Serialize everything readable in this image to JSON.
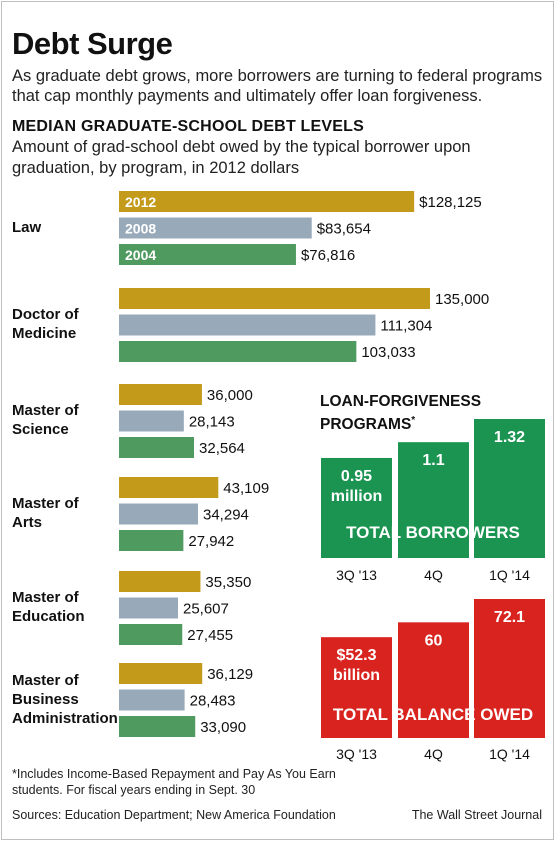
{
  "header": {
    "title": "Debt Surge",
    "subtitle": "As graduate debt grows, more borrowers are turning to federal programs that cap monthly payments and ultimately offer loan forgiveness."
  },
  "chart_data": [
    {
      "type": "bar",
      "orientation": "horizontal",
      "title": "MEDIAN GRADUATE-SCHOOL DEBT LEVELS",
      "subtitle": "Amount of grad-school debt owed by the typical borrower upon graduation, by program, in 2012 dollars",
      "categories": [
        "Law",
        "Doctor of Medicine",
        "Master of Science",
        "Master of Arts",
        "Master of Education",
        "Master of Business Administration"
      ],
      "category_lines": [
        [
          "Law"
        ],
        [
          "Doctor of",
          "Medicine"
        ],
        [
          "Master of",
          "Science"
        ],
        [
          "Master of",
          "Arts"
        ],
        [
          "Master of",
          "Education"
        ],
        [
          "Master of",
          "Business",
          "Administration"
        ]
      ],
      "series": [
        {
          "name": "2012",
          "color": "#c49a1a",
          "values": [
            128125,
            135000,
            36000,
            43109,
            35350,
            36129
          ],
          "labels": [
            "$128,125",
            "135,000",
            "36,000",
            "43,109",
            "35,350",
            "36,129"
          ]
        },
        {
          "name": "2008",
          "color": "#98a9ba",
          "values": [
            83654,
            111304,
            28143,
            34294,
            25607,
            28483
          ],
          "labels": [
            "$83,654",
            "111,304",
            "28,143",
            "34,294",
            "25,607",
            "28,483"
          ]
        },
        {
          "name": "2004",
          "color": "#4f9a5f",
          "values": [
            76816,
            103033,
            32564,
            27942,
            27455,
            33090
          ],
          "labels": [
            "$76,816",
            "103,033",
            "32,564",
            "27,942",
            "27,455",
            "33,090"
          ]
        }
      ],
      "legend": "inside-first-group-bars"
    },
    {
      "type": "bar",
      "title": "LOAN-FORGIVENESS PROGRAMS*",
      "categories": [
        "3Q '13",
        "4Q",
        "1Q '14"
      ],
      "series": [
        {
          "name": "TOTAL BORROWERS",
          "unit": "million",
          "color": "#1a9450",
          "values": [
            0.95,
            1.1,
            1.32
          ],
          "labels": [
            "0.95",
            "1.1",
            "1.32"
          ],
          "first_label_suffix": "million"
        }
      ]
    },
    {
      "type": "bar",
      "categories": [
        "3Q '13",
        "4Q",
        "1Q '14"
      ],
      "series": [
        {
          "name": "TOTAL BALANCE OWED",
          "unit": "billion",
          "color": "#d8231f",
          "values": [
            52.3,
            60,
            72.1
          ],
          "labels": [
            "$52.3",
            "60",
            "72.1"
          ],
          "first_label_suffix": "billion"
        }
      ]
    }
  ],
  "loan_forgiveness": {
    "title": "LOAN-FORGIVENESS",
    "title_line2": "PROGRAMS",
    "asterisk": "*"
  },
  "footer": {
    "footnote": "*Includes Income-Based Repayment and Pay As You Earn students.  For fiscal years ending in Sept. 30",
    "sources": "Sources: Education Department; New America Foundation",
    "credit": "The Wall Street Journal"
  }
}
